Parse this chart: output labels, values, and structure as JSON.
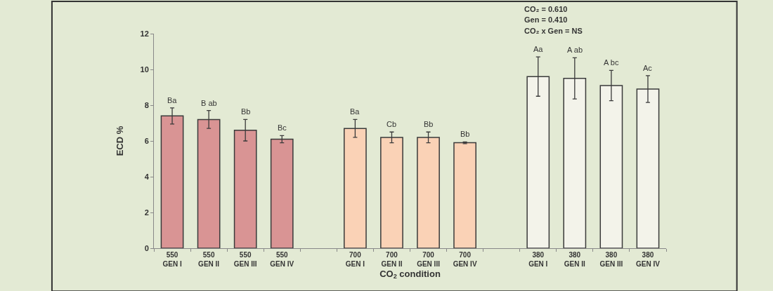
{
  "chart_data": {
    "type": "bar",
    "xlabel": "CO$_{2}$ condition",
    "ylabel": "ECD %",
    "categories": [
      "550\nGEN I",
      "550\nGEN II",
      "550\nGEN III",
      "550\nGEN IV",
      null,
      "700\nGEN I",
      "700\nGEN II",
      "700\nGEN III",
      "700\nGEN IV",
      null,
      "380\nGEN I",
      "380\nGEN II",
      "380\nGEN III",
      "380\nGEN IV"
    ],
    "values": [
      7.4,
      7.2,
      6.6,
      6.1,
      null,
      6.7,
      6.2,
      6.2,
      5.9,
      null,
      9.6,
      9.5,
      9.1,
      8.9
    ],
    "errors": [
      0.45,
      0.5,
      0.6,
      0.2,
      null,
      0.5,
      0.3,
      0.3,
      0.05,
      null,
      1.1,
      1.15,
      0.85,
      0.75
    ],
    "colors": [
      "#d99494",
      "#d99494",
      "#d99494",
      "#d99494",
      null,
      "#fad2b6",
      "#fad2b6",
      "#fad2b6",
      "#fad2b6",
      null,
      "#f3f3ea",
      "#f3f3ea",
      "#f3f3ea",
      "#f3f3ea"
    ],
    "value_labels": [
      "Ba",
      "B ab",
      "Bb",
      "Bc",
      null,
      "Ba",
      "Cb",
      "Bb",
      "Bb",
      null,
      "Aa",
      "A ab",
      "A bc",
      "Ac"
    ],
    "ylim": [
      0,
      12
    ],
    "yticks": [
      0,
      2,
      4,
      6,
      8,
      10,
      12
    ],
    "annotations": [
      "CO₂ = 0.610",
      "Gen = 0.410",
      "CO₂ x Gen = NS"
    ],
    "grid": false,
    "legend": false
  }
}
